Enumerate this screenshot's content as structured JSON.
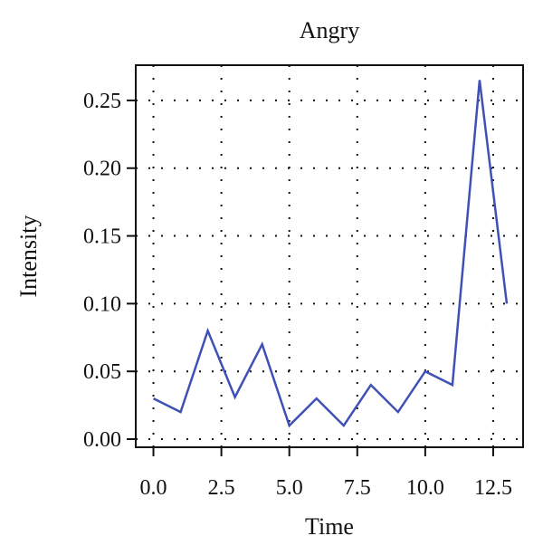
{
  "chart_data": {
    "type": "line",
    "title": "Angry",
    "xlabel": "Time",
    "ylabel": "Intensity",
    "xlim": [
      -0.65,
      13.6
    ],
    "ylim": [
      -0.006,
      0.276
    ],
    "xticks": [
      0.0,
      2.5,
      5.0,
      7.5,
      10.0,
      12.5
    ],
    "xtick_labels": [
      "0.0",
      "2.5",
      "5.0",
      "7.5",
      "10.0",
      "12.5"
    ],
    "yticks": [
      0.0,
      0.05,
      0.1,
      0.15,
      0.2,
      0.25
    ],
    "ytick_labels": [
      "0.00",
      "0.05",
      "0.10",
      "0.15",
      "0.20",
      "0.25"
    ],
    "grid": "dotted",
    "series": [
      {
        "color": "#3f51b5",
        "x": [
          0,
          1,
          2,
          3,
          4,
          5,
          6,
          7,
          8,
          9,
          10,
          11,
          12,
          13
        ],
        "y": [
          0.03,
          0.02,
          0.08,
          0.031,
          0.07,
          0.01,
          0.03,
          0.01,
          0.04,
          0.02,
          0.05,
          0.04,
          0.265,
          0.1
        ]
      }
    ]
  }
}
